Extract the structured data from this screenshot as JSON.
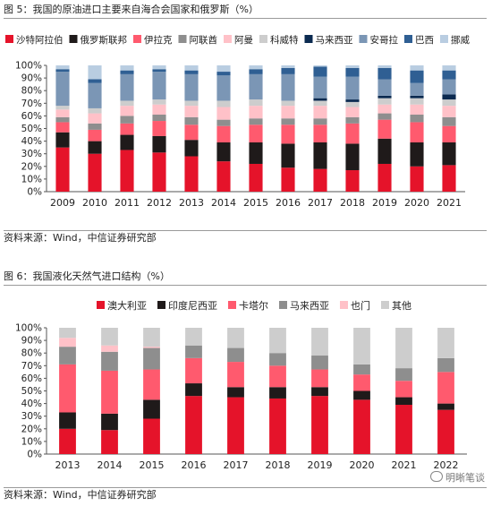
{
  "figure5": {
    "title": "图 5：我国的原油进口主要来自海合会国家和俄罗斯（%）",
    "source": "资料来源：Wind，中信证券研究部"
  },
  "figure6": {
    "title": "图 6：我国液化天然气进口结构（%）",
    "source": "资料来源：Wind，中信证券研究部"
  },
  "watermark": "明晰笔谈",
  "chart_data": [
    {
      "type": "bar",
      "stacked": true,
      "title": "图 5：我国的原油进口主要来自海合会国家和俄罗斯（%）",
      "categories": [
        "2009",
        "2010",
        "2011",
        "2012",
        "2013",
        "2014",
        "2015",
        "2016",
        "2017",
        "2018",
        "2019",
        "2020",
        "2021"
      ],
      "ylim": [
        0,
        100
      ],
      "yticks": [
        "0%",
        "10%",
        "20%",
        "30%",
        "40%",
        "50%",
        "60%",
        "70%",
        "80%",
        "90%",
        "100%"
      ],
      "legend_position": "top",
      "series": [
        {
          "name": "沙特阿拉伯",
          "color": "#e5132a",
          "values": [
            35,
            30,
            33,
            31,
            28,
            24,
            22,
            19,
            18,
            17,
            22,
            20,
            21
          ]
        },
        {
          "name": "俄罗斯联邦",
          "color": "#1f1a1a",
          "values": [
            12,
            10,
            12,
            13,
            13,
            15,
            17,
            19,
            21,
            21,
            20,
            19,
            18
          ]
        },
        {
          "name": "伊拉克",
          "color": "#ff5a6e",
          "values": [
            8,
            9,
            9,
            12,
            12,
            13,
            14,
            15,
            14,
            16,
            15,
            16,
            13
          ]
        },
        {
          "name": "阿联酋",
          "color": "#8e8e8e",
          "values": [
            4,
            5,
            6,
            5,
            6,
            5,
            5,
            5,
            5,
            5,
            5,
            6,
            7
          ]
        },
        {
          "name": "阿曼",
          "color": "#ffc1c8",
          "values": [
            6,
            8,
            8,
            8,
            9,
            10,
            10,
            10,
            10,
            8,
            7,
            8,
            9
          ]
        },
        {
          "name": "科威特",
          "color": "#cdcdcd",
          "values": [
            3,
            4,
            4,
            4,
            4,
            5,
            5,
            4,
            4,
            4,
            5,
            5,
            5
          ]
        },
        {
          "name": "马来西亚",
          "color": "#0b2a50",
          "values": [
            0,
            0,
            0,
            0,
            0,
            0,
            0,
            0,
            2,
            2,
            2,
            2,
            4
          ]
        },
        {
          "name": "安哥拉",
          "color": "#7b96b5",
          "values": [
            27,
            20,
            21,
            22,
            21,
            20,
            20,
            21,
            17,
            18,
            13,
            10,
            12
          ]
        },
        {
          "name": "巴西",
          "color": "#2f5f93",
          "values": [
            2,
            3,
            3,
            2,
            3,
            3,
            4,
            5,
            8,
            7,
            9,
            10,
            7
          ]
        },
        {
          "name": "挪威",
          "color": "#b9cde1",
          "values": [
            3,
            11,
            4,
            3,
            4,
            5,
            3,
            2,
            1,
            2,
            2,
            4,
            4
          ]
        }
      ]
    },
    {
      "type": "bar",
      "stacked": true,
      "title": "图 6：我国液化天然气进口结构（%）",
      "categories": [
        "2013",
        "2014",
        "2015",
        "2016",
        "2017",
        "2018",
        "2019",
        "2020",
        "2021",
        "2022"
      ],
      "ylim": [
        0,
        100
      ],
      "yticks": [
        "0%",
        "10%",
        "20%",
        "30%",
        "40%",
        "50%",
        "60%",
        "70%",
        "80%",
        "90%",
        "100%"
      ],
      "legend_position": "top",
      "series": [
        {
          "name": "澳大利亚",
          "color": "#e5132a",
          "values": [
            20,
            19,
            28,
            46,
            45,
            44,
            46,
            43,
            39,
            35
          ]
        },
        {
          "name": "印度尼西亚",
          "color": "#1f1a1a",
          "values": [
            13,
            13,
            15,
            10,
            8,
            9,
            7,
            7,
            6,
            5
          ]
        },
        {
          "name": "卡塔尔",
          "color": "#ff5a6e",
          "values": [
            38,
            34,
            24,
            20,
            20,
            17,
            14,
            13,
            13,
            25
          ]
        },
        {
          "name": "马来西亚",
          "color": "#8e8e8e",
          "values": [
            14,
            15,
            17,
            10,
            11,
            10,
            11,
            8,
            10,
            11
          ]
        },
        {
          "name": "也门",
          "color": "#ffc1c8",
          "values": [
            7,
            5,
            1,
            0,
            0,
            0,
            0,
            0,
            0,
            0
          ]
        },
        {
          "name": "其他",
          "color": "#cdcdcd",
          "values": [
            8,
            14,
            15,
            14,
            16,
            20,
            22,
            29,
            32,
            24
          ]
        }
      ]
    }
  ]
}
